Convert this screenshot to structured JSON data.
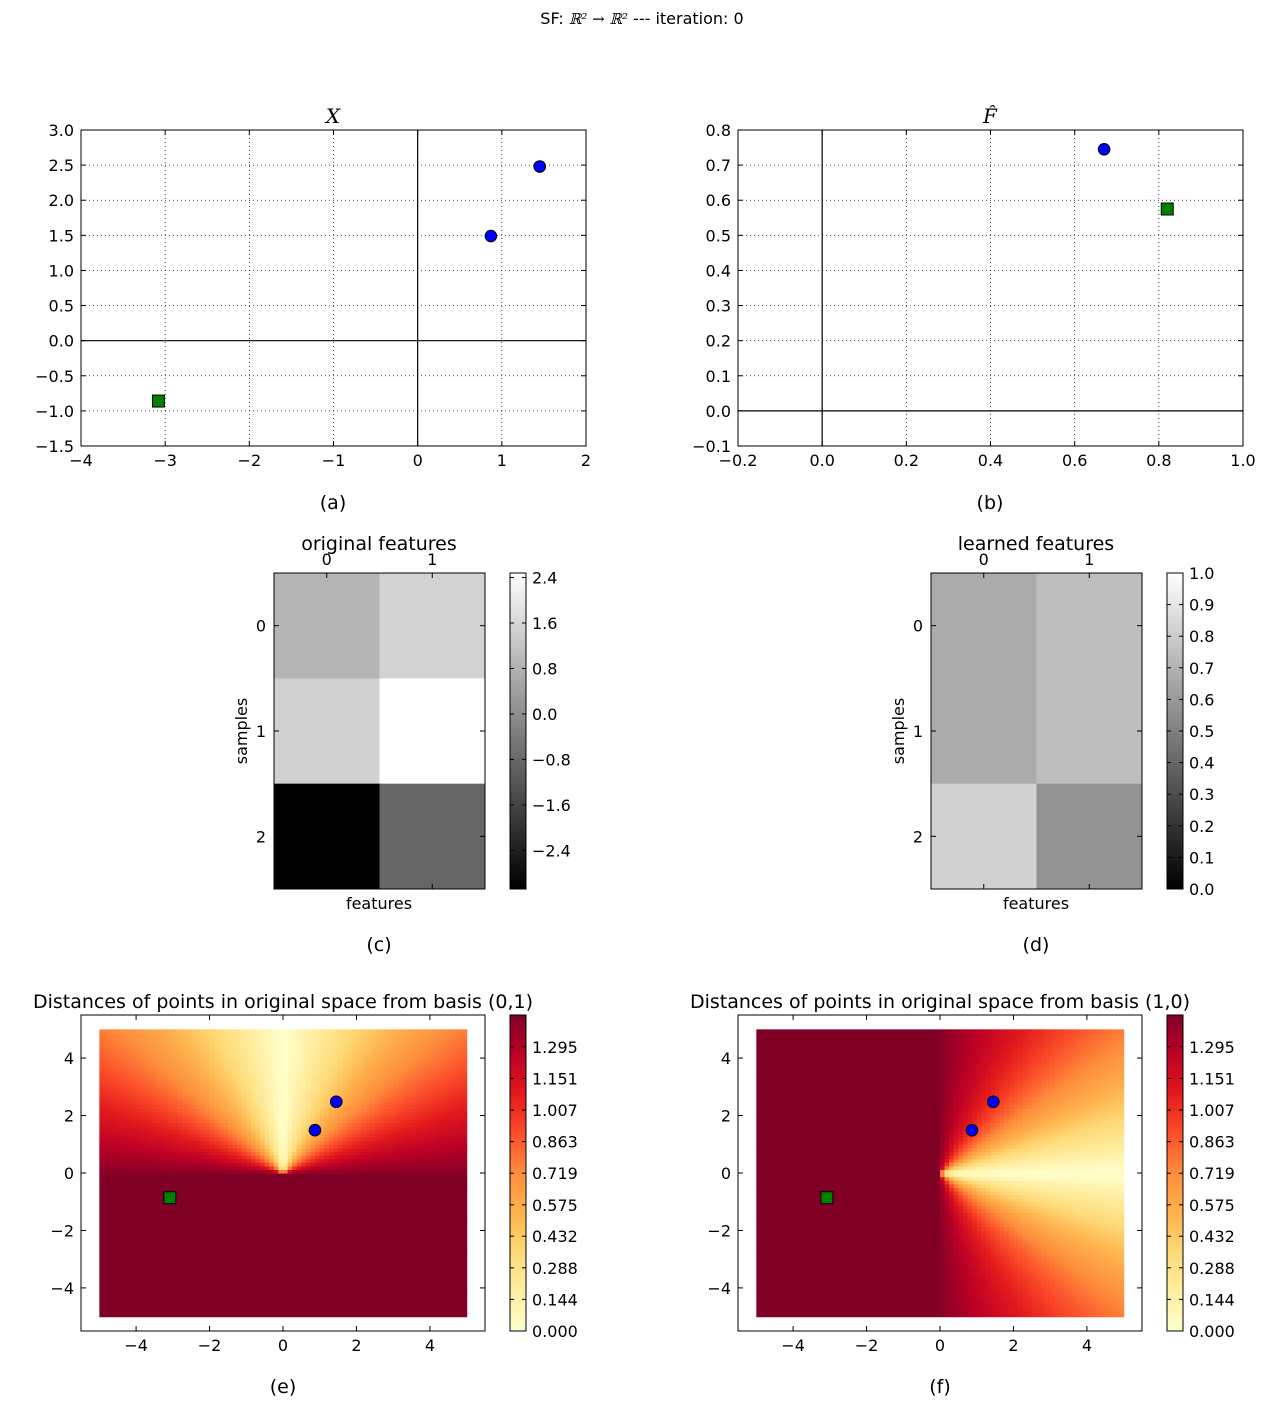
{
  "figure": {
    "suptitle_prefix": "SF:",
    "suptitle_math": "ℝ² → ℝ²",
    "suptitle_suffix": "  ---  iteration: 0"
  },
  "chart_data": [
    {
      "id": "a",
      "type": "scatter",
      "title": "X",
      "caption": "(a)",
      "xlim": [
        -4,
        2
      ],
      "ylim": [
        -1.5,
        3.0
      ],
      "xticks": [
        -4,
        -3,
        -2,
        -1,
        0,
        1,
        2
      ],
      "xtick_labels": [
        "−4",
        "−3",
        "−2",
        "−1",
        "0",
        "1",
        "2"
      ],
      "yticks": [
        -1.5,
        -1.0,
        -0.5,
        0.0,
        0.5,
        1.0,
        1.5,
        2.0,
        2.5,
        3.0
      ],
      "ytick_labels": [
        "−1.5",
        "−1.0",
        "−0.5",
        "0.0",
        "0.5",
        "1.0",
        "1.5",
        "2.0",
        "2.5",
        "3.0"
      ],
      "grid": true,
      "series": [
        {
          "name": "circles",
          "marker": "circle",
          "color": "#0000ff",
          "points": [
            [
              1.45,
              2.48
            ],
            [
              0.87,
              1.49
            ]
          ]
        },
        {
          "name": "squares",
          "marker": "square",
          "color": "#008000",
          "points": [
            [
              -3.08,
              -0.86
            ]
          ]
        }
      ]
    },
    {
      "id": "b",
      "type": "scatter",
      "title": "F̂",
      "caption": "(b)",
      "xlim": [
        -0.2,
        1.0
      ],
      "ylim": [
        -0.1,
        0.8
      ],
      "xticks": [
        -0.2,
        0.0,
        0.2,
        0.4,
        0.6,
        0.8,
        1.0
      ],
      "xtick_labels": [
        "−0.2",
        "0.0",
        "0.2",
        "0.4",
        "0.6",
        "0.8",
        "1.0"
      ],
      "yticks": [
        -0.1,
        0.0,
        0.1,
        0.2,
        0.3,
        0.4,
        0.5,
        0.6,
        0.7,
        0.8
      ],
      "ytick_labels": [
        "−0.1",
        "0.0",
        "0.1",
        "0.2",
        "0.3",
        "0.4",
        "0.5",
        "0.6",
        "0.7",
        "0.8"
      ],
      "grid": true,
      "series": [
        {
          "name": "circles",
          "marker": "circle",
          "color": "#0000ff",
          "points": [
            [
              0.67,
              0.745
            ]
          ]
        },
        {
          "name": "squares",
          "marker": "square",
          "color": "#008000",
          "points": [
            [
              0.82,
              0.575
            ]
          ]
        }
      ]
    },
    {
      "id": "c",
      "type": "heatmap",
      "title": "original features",
      "caption": "(c)",
      "xlabel": "features",
      "ylabel": "samples",
      "col_labels": [
        "0",
        "1"
      ],
      "row_labels": [
        "0",
        "1",
        "2"
      ],
      "values": [
        [
          0.87,
          1.49
        ],
        [
          1.45,
          2.48
        ],
        [
          -3.08,
          -0.86
        ]
      ],
      "vmin": -3.08,
      "vmax": 2.48,
      "colormap": "gray",
      "colorbar_ticks": [
        2.4,
        1.6,
        0.8,
        0.0,
        -0.8,
        -1.6,
        -2.4
      ],
      "colorbar_tick_labels": [
        "2.4",
        "1.6",
        "0.8",
        "0.0",
        "−0.8",
        "−1.6",
        "−2.4"
      ]
    },
    {
      "id": "d",
      "type": "heatmap",
      "title": "learned features",
      "caption": "(d)",
      "xlabel": "features",
      "ylabel": "samples",
      "col_labels": [
        "0",
        "1"
      ],
      "row_labels": [
        "0",
        "1",
        "2"
      ],
      "values": [
        [
          0.67,
          0.745
        ],
        [
          0.67,
          0.745
        ],
        [
          0.82,
          0.575
        ]
      ],
      "vmin": 0.0,
      "vmax": 1.0,
      "colormap": "gray",
      "colorbar_ticks": [
        1.0,
        0.9,
        0.8,
        0.7,
        0.6,
        0.5,
        0.4,
        0.3,
        0.2,
        0.1,
        0.0
      ],
      "colorbar_tick_labels": [
        "1.0",
        "0.9",
        "0.8",
        "0.7",
        "0.6",
        "0.5",
        "0.4",
        "0.3",
        "0.2",
        "0.1",
        "0.0"
      ]
    },
    {
      "id": "e",
      "type": "heatmap",
      "title": "Distances of points in original space from basis (0,1)",
      "caption": "(e)",
      "basis": [
        0,
        1
      ],
      "xlim": [
        -5.5,
        5.5
      ],
      "ylim": [
        -5.5,
        5.5
      ],
      "field_extent": [
        -5,
        5
      ],
      "xticks": [
        -4,
        -2,
        0,
        2,
        4
      ],
      "xtick_labels": [
        "−4",
        "−2",
        "0",
        "2",
        "4"
      ],
      "yticks": [
        -4,
        -2,
        0,
        2,
        4
      ],
      "ytick_labels": [
        "−4",
        "−2",
        "0",
        "2",
        "4"
      ],
      "colormap": "YlOrRd",
      "vmin": 0.0,
      "vmax": 1.44,
      "colorbar_ticks": [
        1.295,
        1.151,
        1.007,
        0.863,
        0.719,
        0.575,
        0.432,
        0.288,
        0.144,
        0.0
      ],
      "colorbar_tick_labels": [
        "1.295",
        "1.151",
        "1.007",
        "0.863",
        "0.719",
        "0.575",
        "0.432",
        "0.288",
        "0.144",
        "0.000"
      ],
      "series": [
        {
          "name": "circles",
          "marker": "circle",
          "color": "#0000ff",
          "points": [
            [
              1.45,
              2.48
            ],
            [
              0.87,
              1.49
            ]
          ]
        },
        {
          "name": "squares",
          "marker": "square",
          "color": "#008000",
          "points": [
            [
              -3.08,
              -0.86
            ]
          ]
        }
      ]
    },
    {
      "id": "f",
      "type": "heatmap",
      "title": "Distances of points in original space from basis (1,0)",
      "caption": "(f)",
      "basis": [
        1,
        0
      ],
      "xlim": [
        -5.5,
        5.5
      ],
      "ylim": [
        -5.5,
        5.5
      ],
      "field_extent": [
        -5,
        5
      ],
      "xticks": [
        -4,
        -2,
        0,
        2,
        4
      ],
      "xtick_labels": [
        "−4",
        "−2",
        "0",
        "2",
        "4"
      ],
      "yticks": [
        -4,
        -2,
        0,
        2,
        4
      ],
      "ytick_labels": [
        "−4",
        "−2",
        "0",
        "2",
        "4"
      ],
      "colormap": "YlOrRd",
      "vmin": 0.0,
      "vmax": 1.44,
      "colorbar_ticks": [
        1.295,
        1.151,
        1.007,
        0.863,
        0.719,
        0.575,
        0.432,
        0.288,
        0.144,
        0.0
      ],
      "colorbar_tick_labels": [
        "1.295",
        "1.151",
        "1.007",
        "0.863",
        "0.719",
        "0.575",
        "0.432",
        "0.288",
        "0.144",
        "0.000"
      ],
      "series": [
        {
          "name": "circles",
          "marker": "circle",
          "color": "#0000ff",
          "points": [
            [
              1.45,
              2.48
            ],
            [
              0.87,
              1.49
            ]
          ]
        },
        {
          "name": "squares",
          "marker": "square",
          "color": "#008000",
          "points": [
            [
              -3.08,
              -0.86
            ]
          ]
        }
      ]
    }
  ]
}
